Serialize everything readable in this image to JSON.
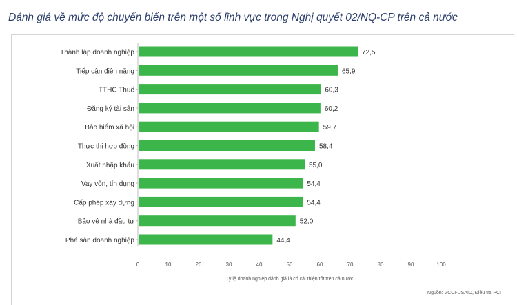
{
  "title": "Đánh giá về mức độ chuyển biến trên một số lĩnh vực trong Nghị quyết 02/NQ-CP trên cả nước",
  "chart_data": {
    "type": "bar",
    "orientation": "horizontal",
    "categories": [
      "Thành lập doanh nghiệp",
      "Tiếp cận điện năng",
      "TTHC Thuế",
      "Đăng ký tài sản",
      "Bảo hiểm xã hội",
      "Thực thi hợp đồng",
      "Xuất nhập khẩu",
      "Vay vốn, tín dụng",
      "Cấp phép xây dựng",
      "Bảo vệ nhà đầu tư",
      "Phá sản doanh nghiệp"
    ],
    "values": [
      72.5,
      65.9,
      60.3,
      60.2,
      59.7,
      58.4,
      55.0,
      54.4,
      54.4,
      52.0,
      44.4
    ],
    "value_labels": [
      "72,5",
      "65,9",
      "60,3",
      "60,2",
      "59,7",
      "58,4",
      "55,0",
      "54,4",
      "54,4",
      "52,0",
      "44,4"
    ],
    "xticks": [
      0,
      10,
      20,
      30,
      40,
      50,
      60,
      70,
      80,
      90,
      100
    ],
    "xlim": [
      0,
      100
    ],
    "xlabel": "Tỷ lệ doanh nghiệp đánh giá là có cải thiện tốt trên cả nước",
    "source": "Nguồn: VCCI-USAID, Điều tra PCI",
    "bar_color": "#3cb54a",
    "grid": false
  }
}
